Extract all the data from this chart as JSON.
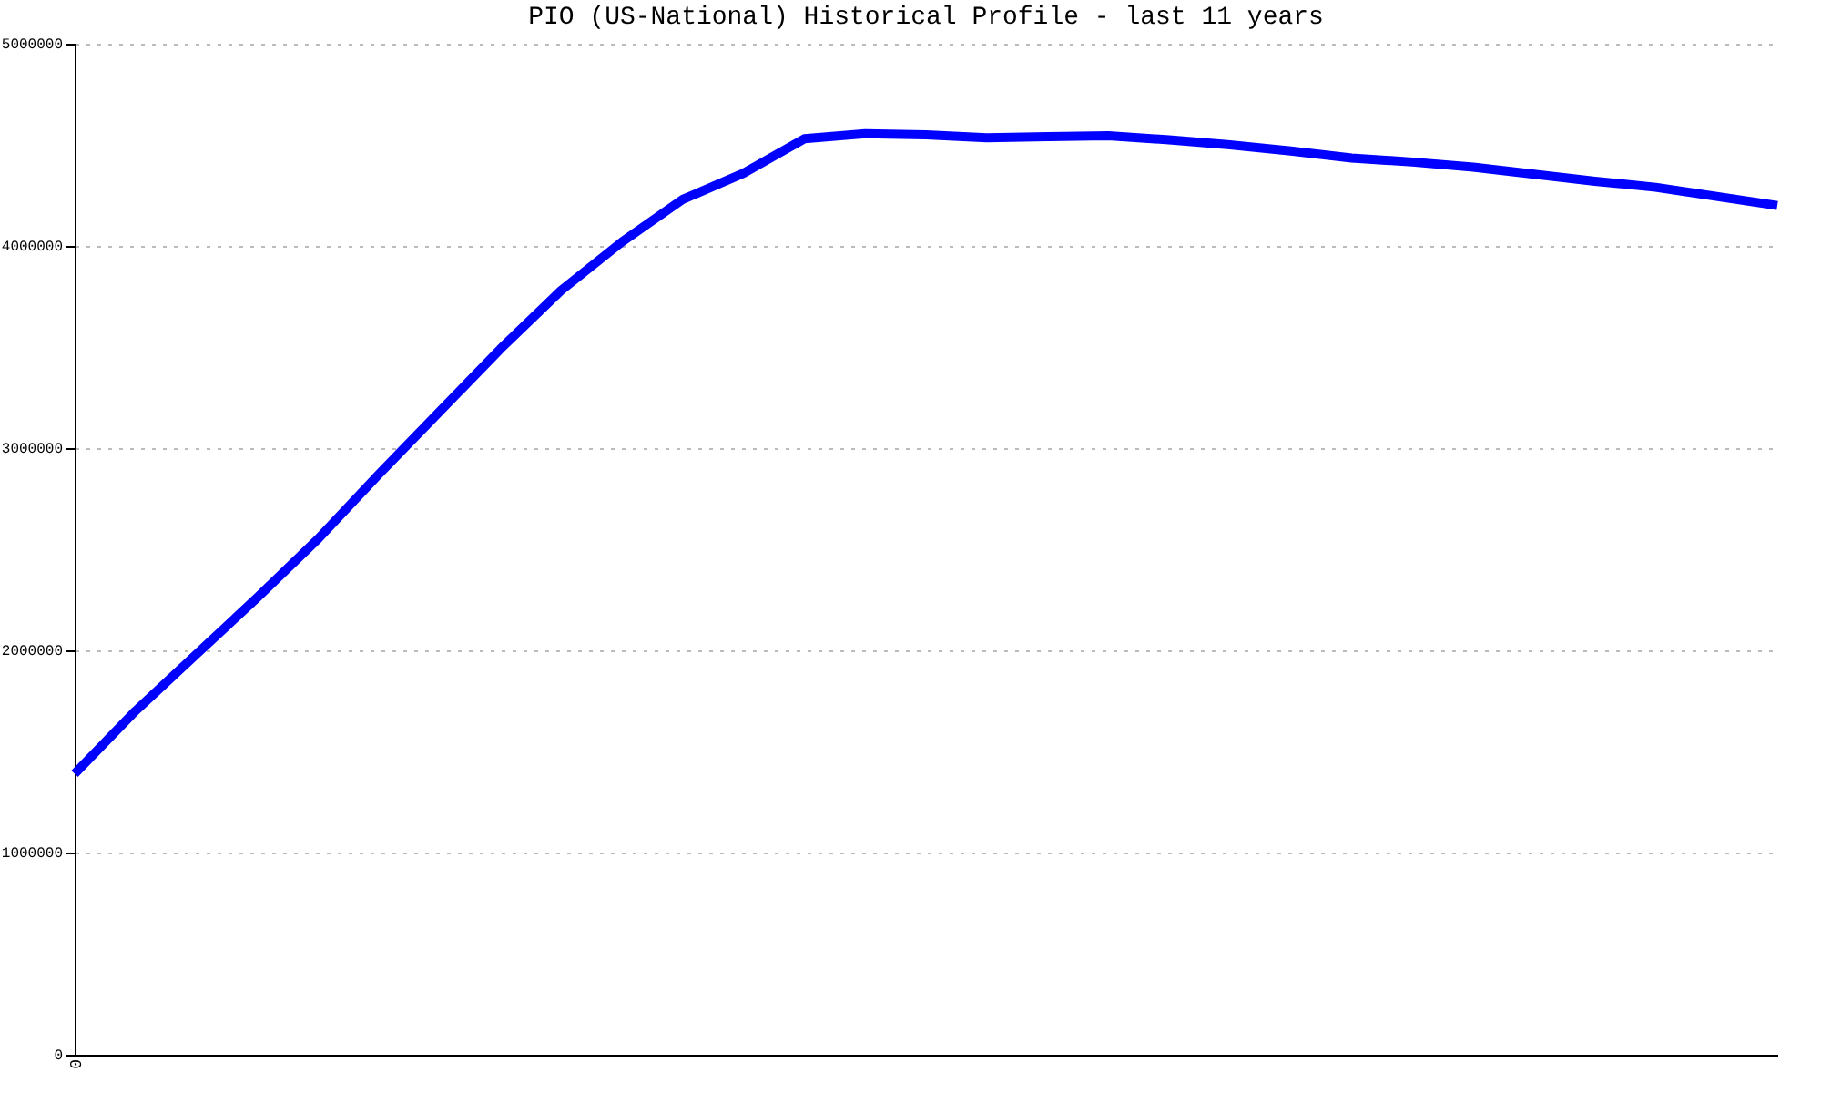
{
  "chart_data": {
    "type": "line",
    "title": "PIO (US-National) Historical Profile - last 11 years",
    "categories": [
      "0",
      null,
      null,
      null,
      null,
      null,
      null,
      null,
      null,
      null,
      null,
      null,
      null,
      null,
      null,
      null,
      null,
      null,
      null,
      null,
      null,
      null,
      null,
      null,
      null,
      null,
      null,
      null,
      null
    ],
    "series": [
      {
        "color": "#0000ff",
        "values": [
          1390000,
          1700000,
          1980000,
          2260000,
          2550000,
          2870000,
          3180000,
          3490000,
          3780000,
          4020000,
          4230000,
          4360000,
          4530000,
          4555000,
          4550000,
          4535000,
          4540000,
          4545000,
          4525000,
          4500000,
          4470000,
          4435000,
          4415000,
          4390000,
          4355000,
          4320000,
          4290000,
          4245000,
          4200000
        ]
      }
    ],
    "ylim": [
      0,
      5000000
    ],
    "yticks": [
      0,
      1000000,
      2000000,
      3000000,
      4000000,
      5000000
    ],
    "grid": "y",
    "legend": false,
    "marker": "none",
    "line_style": "solid"
  }
}
